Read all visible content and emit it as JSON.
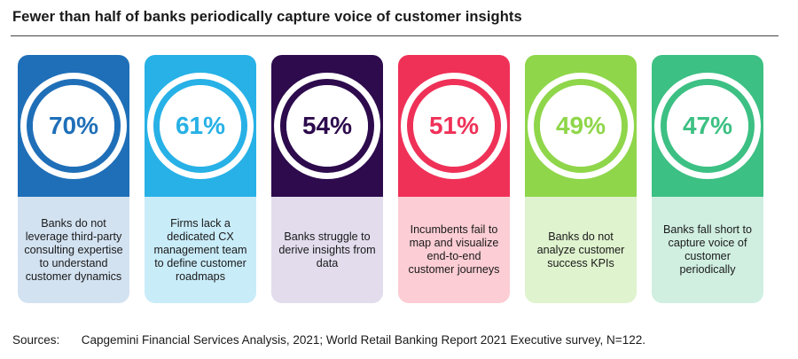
{
  "title": "Fewer than half of banks periodically capture voice of customer insights",
  "sources_label": "Sources:",
  "sources_text": "Capgemini Financial Services Analysis, 2021; World Retail Banking Report 2021 Executive survey, N=122.",
  "chart_data": {
    "type": "bar",
    "title": "Fewer than half of banks periodically capture voice of customer insights",
    "unit": "%",
    "categories": [
      "Banks do not leverage third-party consulting expertise to understand customer dynamics",
      "Firms lack a dedicated CX management team to define customer roadmaps",
      "Banks struggle to derive insights from data",
      "Incumbents fail to map and visualize end-to-end customer journeys",
      "Banks do not analyze customer success KPIs",
      "Banks fall short to capture voice of customer periodically"
    ],
    "values": [
      70,
      61,
      54,
      51,
      49,
      47
    ],
    "labels": [
      "70%",
      "61%",
      "54%",
      "51%",
      "49%",
      "47%"
    ],
    "colors": [
      {
        "main": "#1f6fb8",
        "light": "#d3e2f1"
      },
      {
        "main": "#27b1e6",
        "light": "#c9ecf9"
      },
      {
        "main": "#2d0b4d",
        "light": "#e2dced"
      },
      {
        "main": "#ef3158",
        "light": "#fccdd4"
      },
      {
        "main": "#8fd64a",
        "light": "#dff3ce"
      },
      {
        "main": "#3cc083",
        "light": "#d0efe1"
      }
    ]
  }
}
